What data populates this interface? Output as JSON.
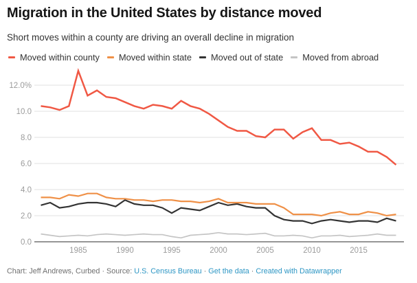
{
  "header": {
    "title": "Migration in the United States by distance moved",
    "subtitle": "Short moves within a county are driving an overall decline in migration"
  },
  "chart_data": {
    "type": "line",
    "x": [
      1981,
      1982,
      1983,
      1984,
      1985,
      1986,
      1987,
      1988,
      1989,
      1990,
      1991,
      1992,
      1993,
      1994,
      1995,
      1996,
      1997,
      1998,
      1999,
      2000,
      2001,
      2002,
      2003,
      2004,
      2005,
      2006,
      2007,
      2008,
      2009,
      2010,
      2011,
      2012,
      2013,
      2014,
      2015,
      2016,
      2017,
      2018,
      2019
    ],
    "series": [
      {
        "name": "Moved within county",
        "color": "#f05844",
        "line_width": 2.5,
        "values": [
          10.4,
          10.3,
          10.1,
          10.4,
          13.1,
          11.2,
          11.6,
          11.1,
          11.0,
          10.7,
          10.4,
          10.2,
          10.5,
          10.4,
          10.2,
          10.8,
          10.4,
          10.2,
          9.8,
          9.3,
          8.8,
          8.5,
          8.5,
          8.1,
          8.0,
          8.6,
          8.6,
          7.9,
          8.4,
          8.7,
          7.8,
          7.8,
          7.5,
          7.6,
          7.3,
          6.9,
          6.9,
          6.5,
          5.9
        ]
      },
      {
        "name": "Moved within state",
        "color": "#ef9047",
        "line_width": 2.2,
        "values": [
          3.4,
          3.4,
          3.3,
          3.6,
          3.5,
          3.7,
          3.7,
          3.4,
          3.3,
          3.3,
          3.2,
          3.2,
          3.1,
          3.2,
          3.2,
          3.1,
          3.1,
          3.0,
          3.1,
          3.3,
          3.0,
          3.0,
          3.0,
          2.9,
          2.9,
          2.9,
          2.6,
          2.1,
          2.1,
          2.1,
          2.0,
          2.2,
          2.3,
          2.1,
          2.1,
          2.3,
          2.2,
          2.0,
          2.1
        ]
      },
      {
        "name": "Moved out of state",
        "color": "#333333",
        "line_width": 2.2,
        "values": [
          2.8,
          3.0,
          2.6,
          2.7,
          2.9,
          3.0,
          3.0,
          2.9,
          2.7,
          3.2,
          2.9,
          2.8,
          2.8,
          2.6,
          2.2,
          2.6,
          2.5,
          2.4,
          2.7,
          3.0,
          2.8,
          2.9,
          2.7,
          2.6,
          2.6,
          2.0,
          1.7,
          1.6,
          1.6,
          1.4,
          1.6,
          1.7,
          1.6,
          1.5,
          1.6,
          1.6,
          1.5,
          1.8,
          1.6
        ]
      },
      {
        "name": "Moved from abroad",
        "color": "#c4c4c4",
        "line_width": 1.7,
        "values": [
          0.6,
          0.5,
          0.4,
          0.45,
          0.5,
          0.45,
          0.55,
          0.6,
          0.55,
          0.5,
          0.55,
          0.6,
          0.55,
          0.55,
          0.4,
          0.3,
          0.5,
          0.55,
          0.6,
          0.7,
          0.6,
          0.6,
          0.55,
          0.6,
          0.65,
          0.45,
          0.45,
          0.5,
          0.45,
          0.3,
          0.45,
          0.45,
          0.5,
          0.4,
          0.45,
          0.5,
          0.6,
          0.5,
          0.5
        ]
      }
    ],
    "y_ticks": [
      {
        "value": 0,
        "label": "0.0"
      },
      {
        "value": 2,
        "label": "2.0"
      },
      {
        "value": 4,
        "label": "4.0"
      },
      {
        "value": 6,
        "label": "6.0"
      },
      {
        "value": 8,
        "label": "8.0"
      },
      {
        "value": 10,
        "label": "10.0"
      },
      {
        "value": 12,
        "label": "12.0%"
      }
    ],
    "x_ticks": [
      1985,
      1990,
      1995,
      2000,
      2005,
      2010,
      2015
    ],
    "ylim": [
      0,
      13.5
    ],
    "grid": "horizontal",
    "legend_position": "top",
    "title": "Migration in the United States by distance moved",
    "xlabel": "",
    "ylabel": ""
  },
  "styles": {
    "grid_color": "#e2e2e2",
    "axis_color": "#2b2b2b",
    "tick_label_color": "#9b9b9b"
  },
  "footer": {
    "credit": "Chart: Jeff Andrews, Curbed",
    "separator": "·",
    "source_label": "Source:",
    "source_link_label": "U.S. Census Bureau",
    "get_data_label": "Get the data",
    "attribution_label": "Created with Datawrapper"
  }
}
